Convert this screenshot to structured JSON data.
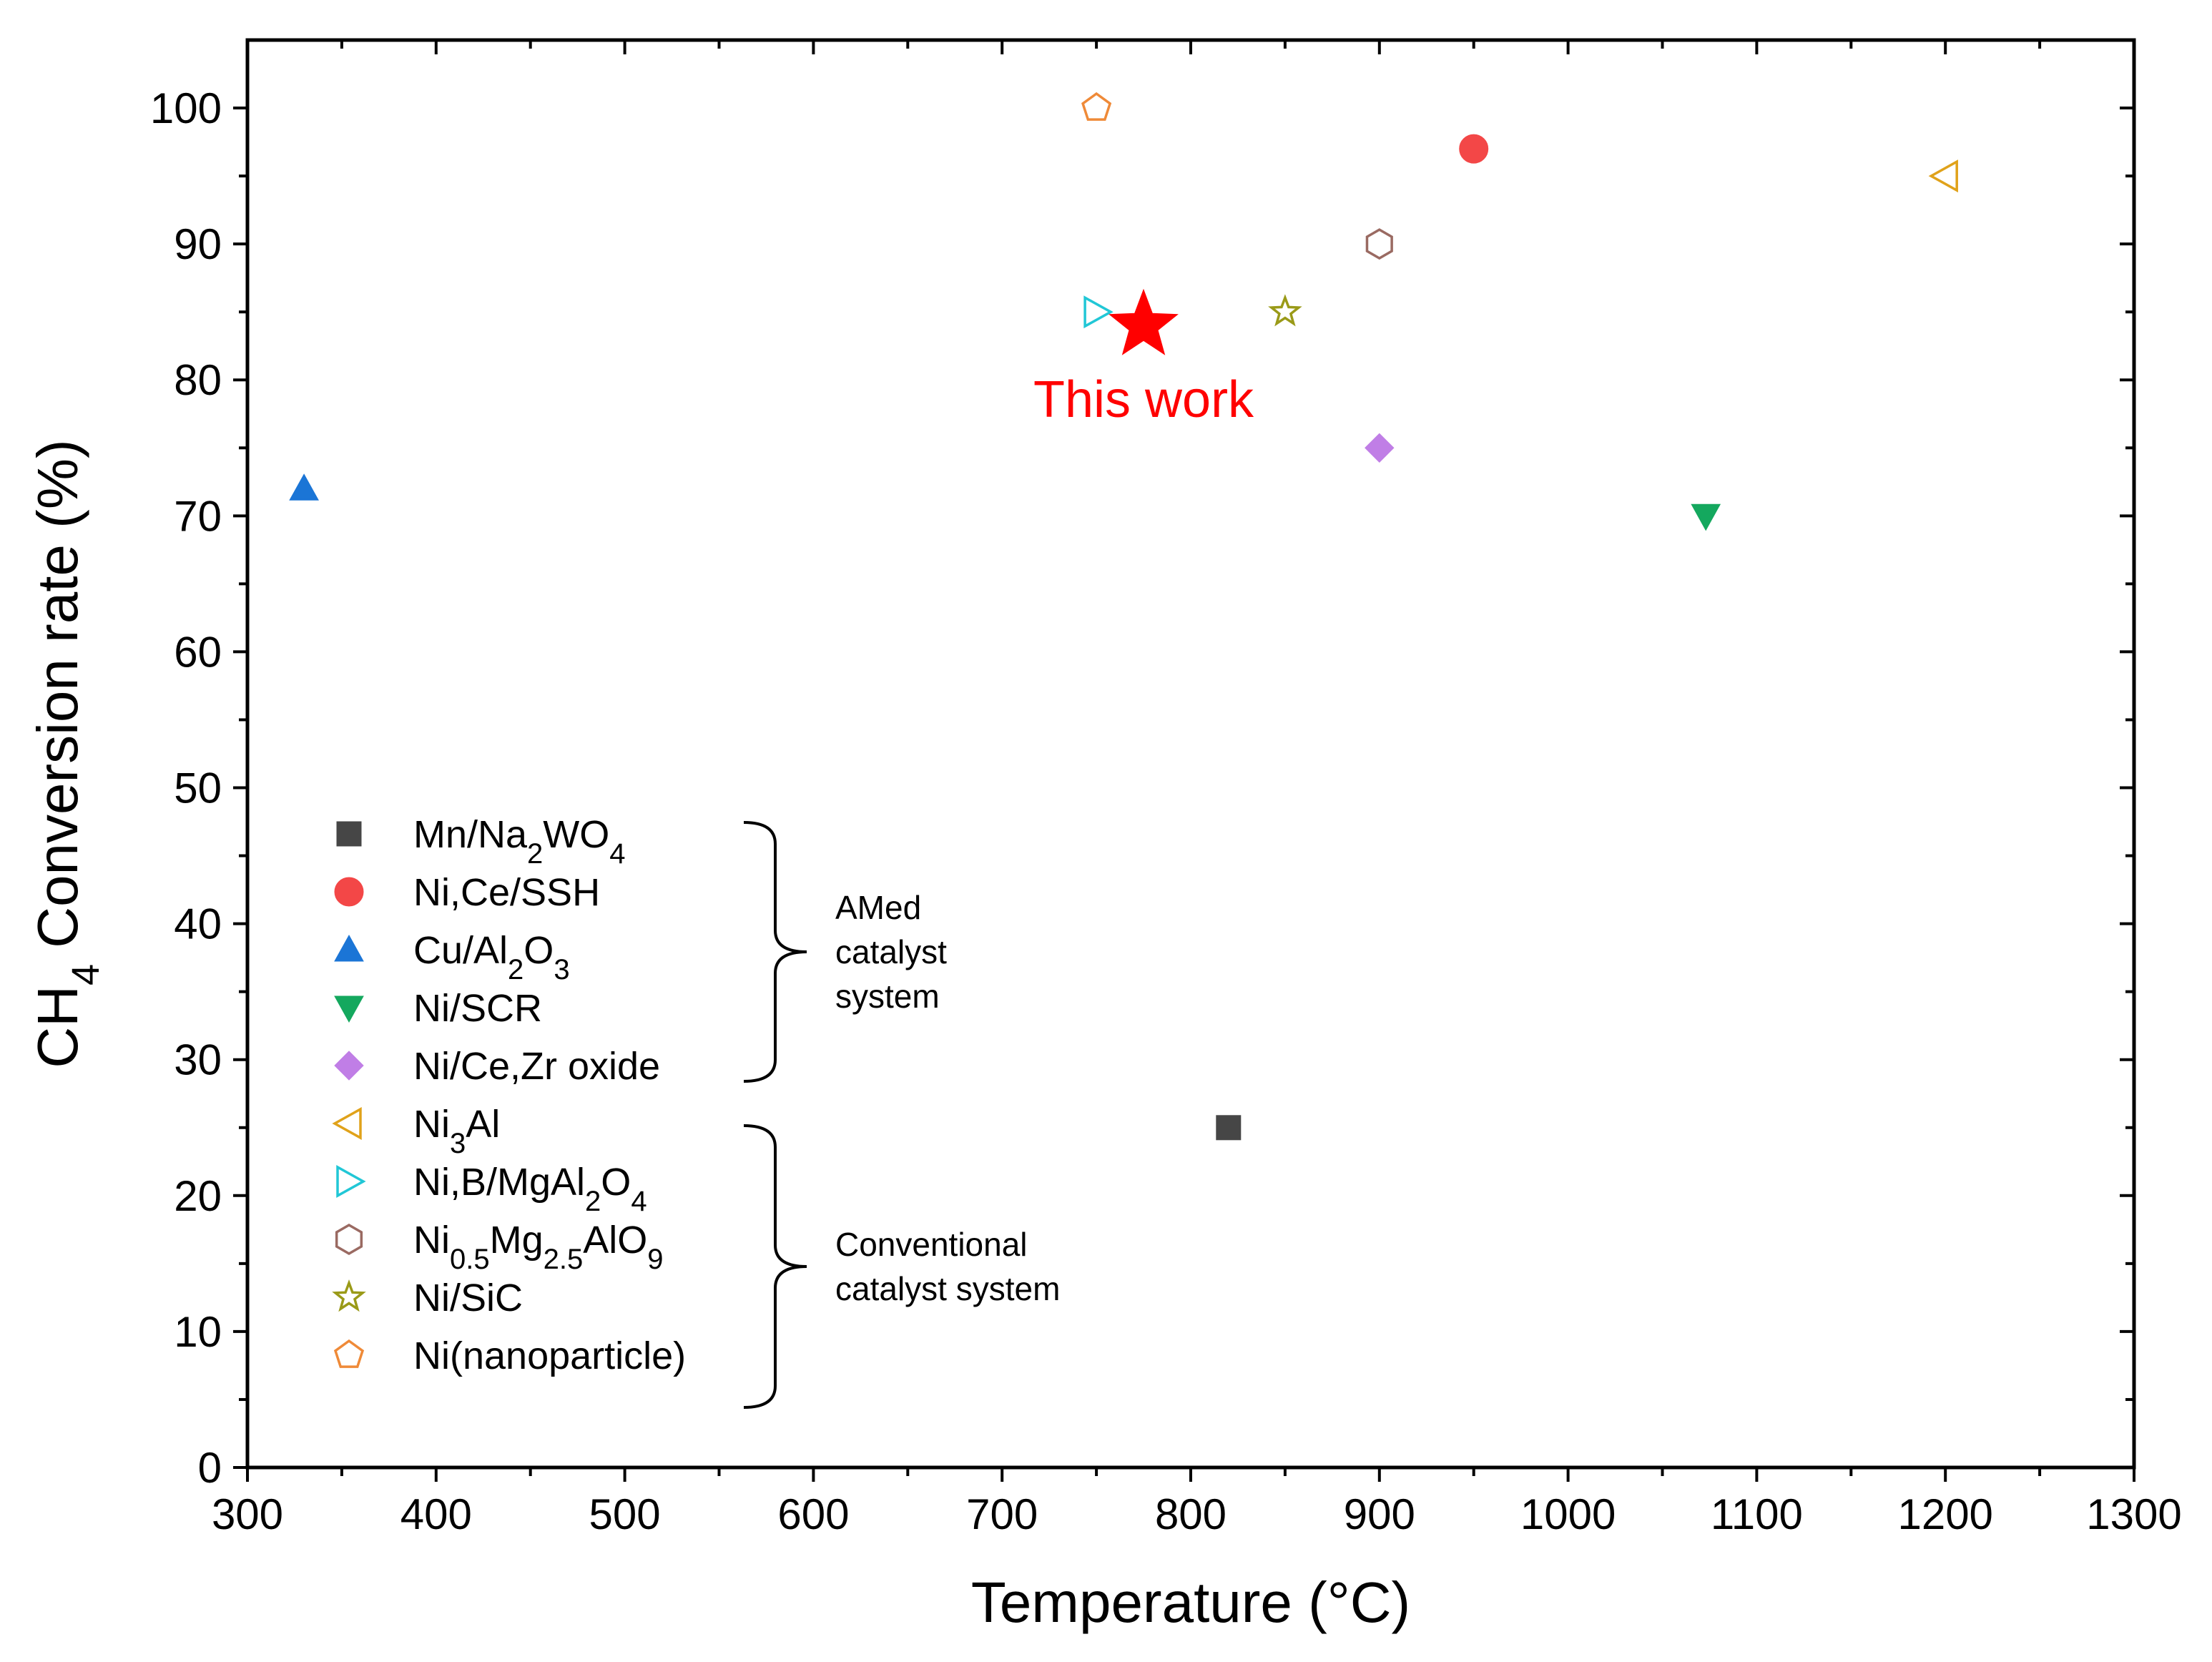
{
  "chart_data": {
    "type": "scatter",
    "xlabel": "Temperature (°C)",
    "ylabel_parts": [
      {
        "t": "CH",
        "sub": false
      },
      {
        "t": "4",
        "sub": true
      },
      {
        "t": " Conversion rate (%)",
        "sub": false
      }
    ],
    "xlim": [
      300,
      1300
    ],
    "ylim": [
      0,
      105
    ],
    "x_ticks": [
      300,
      400,
      500,
      600,
      700,
      800,
      900,
      1000,
      1100,
      1200,
      1300
    ],
    "x_tick_labels": [
      "300",
      "400",
      "500",
      "600",
      "700",
      "800",
      "900",
      "1000",
      "1100",
      "1200",
      "1300"
    ],
    "y_ticks": [
      0,
      10,
      20,
      30,
      40,
      50,
      60,
      70,
      80,
      90,
      100
    ],
    "y_tick_labels": [
      "0",
      "10",
      "20",
      "30",
      "40",
      "50",
      "60",
      "70",
      "80",
      "90",
      "100"
    ],
    "grid": false,
    "series": [
      {
        "name": "Mn/Na2WO4",
        "label_parts": [
          {
            "t": "Mn/Na",
            "sub": false
          },
          {
            "t": "2",
            "sub": true
          },
          {
            "t": "WO",
            "sub": false
          },
          {
            "t": "4",
            "sub": true
          }
        ],
        "marker": "square",
        "filled": true,
        "color": "#464646",
        "points": [
          [
            820,
            25
          ]
        ]
      },
      {
        "name": "Ni,Ce/SSH",
        "label_parts": [
          {
            "t": "Ni,Ce/SSH",
            "sub": false
          }
        ],
        "marker": "circle",
        "filled": true,
        "color": "#f34747",
        "points": [
          [
            950,
            97
          ]
        ]
      },
      {
        "name": "Cu/Al2O3",
        "label_parts": [
          {
            "t": "Cu/Al",
            "sub": false
          },
          {
            "t": "2",
            "sub": true
          },
          {
            "t": "O",
            "sub": false
          },
          {
            "t": "3",
            "sub": true
          }
        ],
        "marker": "triangle-up",
        "filled": true,
        "color": "#1b75d6",
        "points": [
          [
            330,
            72
          ]
        ]
      },
      {
        "name": "Ni/SCR",
        "label_parts": [
          {
            "t": "Ni/SCR",
            "sub": false
          }
        ],
        "marker": "triangle-down",
        "filled": true,
        "color": "#14a85e",
        "points": [
          [
            1073,
            70
          ]
        ]
      },
      {
        "name": "Ni/Ce,Zr oxide",
        "label_parts": [
          {
            "t": "Ni/Ce,Zr oxide",
            "sub": false
          }
        ],
        "marker": "diamond",
        "filled": true,
        "color": "#c07ee6",
        "points": [
          [
            900,
            75
          ]
        ]
      },
      {
        "name": "Ni3Al",
        "label_parts": [
          {
            "t": "Ni",
            "sub": false
          },
          {
            "t": "3",
            "sub": true
          },
          {
            "t": "Al",
            "sub": false
          }
        ],
        "marker": "triangle-left",
        "filled": false,
        "color": "#e0a21a",
        "points": [
          [
            1200,
            95
          ]
        ]
      },
      {
        "name": "Ni,B/MgAl2O4",
        "label_parts": [
          {
            "t": "Ni,B/MgAl",
            "sub": false
          },
          {
            "t": "2",
            "sub": true
          },
          {
            "t": "O",
            "sub": false
          },
          {
            "t": "4",
            "sub": true
          }
        ],
        "marker": "triangle-right",
        "filled": false,
        "color": "#21c7d6",
        "points": [
          [
            750,
            85
          ]
        ]
      },
      {
        "name": "Ni0.5Mg2.5AlO9",
        "label_parts": [
          {
            "t": "Ni",
            "sub": false
          },
          {
            "t": "0.5",
            "sub": true
          },
          {
            "t": "Mg",
            "sub": false
          },
          {
            "t": "2.5",
            "sub": true
          },
          {
            "t": "AlO",
            "sub": false
          },
          {
            "t": "9",
            "sub": true
          }
        ],
        "marker": "hexagon",
        "filled": false,
        "color": "#9a6a62",
        "points": [
          [
            900,
            90
          ]
        ]
      },
      {
        "name": "Ni/SiC",
        "label_parts": [
          {
            "t": "Ni/SiC",
            "sub": false
          }
        ],
        "marker": "star",
        "filled": false,
        "color": "#9a9a18",
        "points": [
          [
            850,
            85
          ]
        ]
      },
      {
        "name": "Ni(nanoparticle)",
        "label_parts": [
          {
            "t": "Ni(nanoparticle)",
            "sub": false
          }
        ],
        "marker": "pentagon",
        "filled": false,
        "color": "#ef8a38",
        "points": [
          [
            750,
            100
          ]
        ]
      }
    ],
    "highlight": {
      "name": "This work",
      "label": "This work",
      "marker": "star",
      "filled": true,
      "color": "#ff0000",
      "point": [
        775,
        84
      ]
    },
    "legend": {
      "placement": "bottom-left",
      "groups": [
        {
          "label_lines": [
            "AMed",
            "catalyst",
            "system"
          ],
          "series_from": 0,
          "series_to": 4
        },
        {
          "label_lines": [
            "Conventional",
            "catalyst system"
          ],
          "series_from": 5,
          "series_to": 9
        }
      ]
    }
  }
}
